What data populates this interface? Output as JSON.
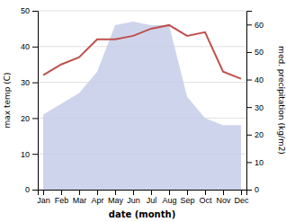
{
  "chart_data": {
    "type": "line",
    "categories": [
      "Jan",
      "Feb",
      "Mar",
      "Apr",
      "May",
      "Jun",
      "Jul",
      "Aug",
      "Sep",
      "Oct",
      "Nov",
      "Dec"
    ],
    "series": [
      {
        "type": "area",
        "color": "#c5cce8",
        "values": [
          21,
          24,
          27,
          33,
          46,
          47,
          46,
          46,
          26,
          20,
          18,
          18
        ]
      },
      {
        "type": "line",
        "color": "#c0504d",
        "values": [
          32,
          35,
          37,
          42,
          42,
          43,
          45,
          46,
          43,
          44,
          33,
          31
        ]
      }
    ],
    "xlabel": "date (month)",
    "ylabel": "max temp (C)",
    "y2label": "med. precipitation (kg/m2)",
    "ylim": [
      0,
      50
    ],
    "yticks": [
      0,
      10,
      20,
      30,
      40,
      50
    ],
    "y2lim": [
      0,
      65
    ],
    "y2ticks": [
      0,
      10,
      20,
      30,
      40,
      50,
      60
    ],
    "grid": true
  }
}
